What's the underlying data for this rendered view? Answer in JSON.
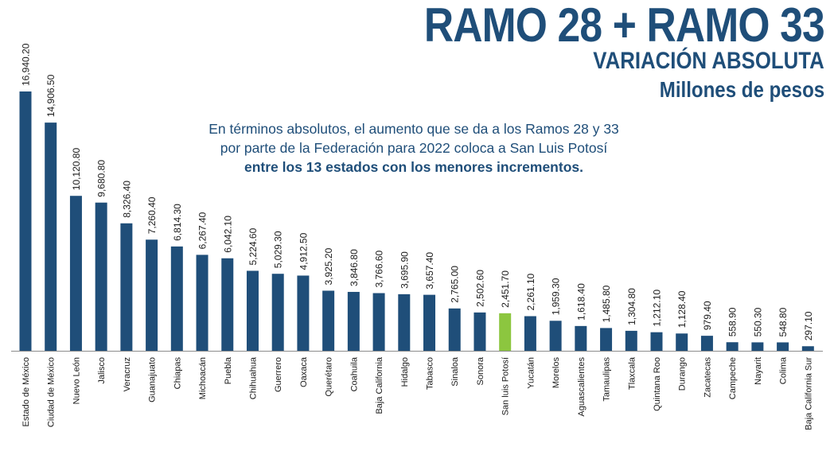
{
  "header": {
    "title": "RAMO 28 + RAMO 33",
    "subtitle": "VARIACIÓN ABSOLUTA",
    "units": "Millones de pesos"
  },
  "note": {
    "line1": "En términos absolutos, el aumento que se da a los Ramos 28 y 33",
    "line2": "por parte de la Federación para 2022 coloca a San Luis Potosí",
    "line3": "entre los 13 estados con los menores incrementos."
  },
  "colors": {
    "bar": "#1f4e79",
    "highlight": "#8cc63f",
    "axis": "#8c8c8c"
  },
  "chart_data": {
    "type": "bar",
    "title": "RAMO 28 + RAMO 33",
    "ylabel": "",
    "xlabel": "",
    "ylim": [
      0,
      17000
    ],
    "grid": false,
    "highlight_category": "San luis Potosí",
    "categories": [
      "Estado de México",
      "Ciudad de México",
      "Nuevo León",
      "Jalisco",
      "Veracruz",
      "Guanajuato",
      "Chiapas",
      "Michoacán",
      "Puebla",
      "Chihuahua",
      "Guerrero",
      "Oaxaca",
      "Querétaro",
      "Coahuila",
      "Baja California",
      "Hidalgo",
      "Tabasco",
      "Sinaloa",
      "Sonora",
      "San luis Potosí",
      "Yucatán",
      "Morelos",
      "Aguascalientes",
      "Tamaulipas",
      "Tlaxcala",
      "Quintana Roo",
      "Durango",
      "Zacatecas",
      "Campeche",
      "Nayarit",
      "Colima",
      "Baja California Sur"
    ],
    "values": [
      16940.2,
      14906.5,
      10120.8,
      9680.8,
      8326.4,
      7260.4,
      6814.3,
      6267.4,
      6042.1,
      5224.6,
      5029.3,
      4912.5,
      3925.2,
      3846.8,
      3766.6,
      3695.9,
      3657.4,
      2765.0,
      2502.6,
      2451.7,
      2261.1,
      1959.3,
      1618.4,
      1485.8,
      1304.8,
      1212.1,
      1128.4,
      979.4,
      558.9,
      550.3,
      548.8,
      297.1
    ],
    "value_labels": [
      "16,940.20",
      "14,906.50",
      "10,120.80",
      "9,680.80",
      "8,326.40",
      "7,260.40",
      "6,814.30",
      "6,267.40",
      "6,042.10",
      "5,224.60",
      "5,029.30",
      "4,912.50",
      "3,925.20",
      "3,846.80",
      "3,766.60",
      "3,695.90",
      "3,657.40",
      "2,765.00",
      "2,502.60",
      "2,451.70",
      "2,261.10",
      "1,959.30",
      "1,618.40",
      "1,485.80",
      "1,304.80",
      "1,212.10",
      "1,128.40",
      "979.40",
      "558.90",
      "550.30",
      "548.80",
      "297.10"
    ]
  }
}
